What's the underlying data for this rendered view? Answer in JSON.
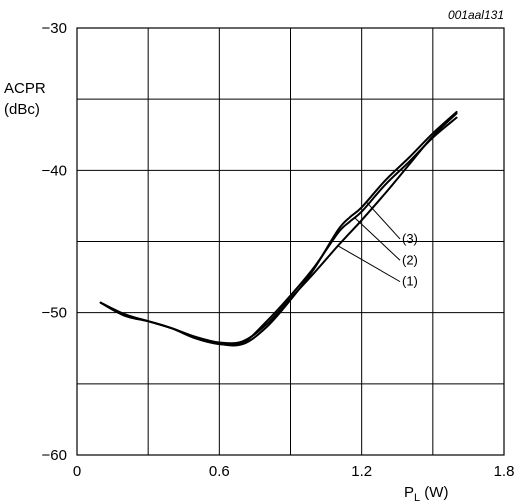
{
  "chart_data": {
    "type": "line",
    "code": "001aal131",
    "xlabel": "P",
    "xlabel_sub": "L",
    "xlabel_unit": " (W)",
    "ylabel_line1": "ACPR",
    "ylabel_line2": "(dBc)",
    "xlim": [
      0,
      1.8
    ],
    "ylim": [
      -60,
      -30
    ],
    "xticks": [
      0,
      0.6,
      1.2,
      1.8
    ],
    "xtick_labels": [
      "0",
      "0.6",
      "1.2",
      "1.8"
    ],
    "yticks": [
      -60,
      -50,
      -40,
      -30
    ],
    "ytick_labels": [
      "−60",
      "−50",
      "−40",
      "−30"
    ],
    "x_grid_step": 0.3,
    "y_grid_step": 5,
    "grid": true,
    "series": [
      {
        "name": "(1)",
        "x": [
          0.1,
          0.2,
          0.3,
          0.4,
          0.5,
          0.6,
          0.7,
          0.8,
          0.9,
          1.0,
          1.1,
          1.15,
          1.2,
          1.3,
          1.4,
          1.5,
          1.6
        ],
        "y": [
          -49.3,
          -50.1,
          -50.6,
          -51.1,
          -51.7,
          -52.1,
          -52.0,
          -50.8,
          -49.0,
          -47.2,
          -45.3,
          -44.4,
          -43.5,
          -41.6,
          -39.6,
          -37.6,
          -36.0
        ]
      },
      {
        "name": "(2)",
        "x": [
          0.1,
          0.2,
          0.3,
          0.4,
          0.5,
          0.6,
          0.7,
          0.8,
          0.9,
          1.0,
          1.1,
          1.15,
          1.2,
          1.3,
          1.4,
          1.5,
          1.6
        ],
        "y": [
          -49.3,
          -50.2,
          -50.6,
          -51.1,
          -51.8,
          -52.2,
          -52.1,
          -50.6,
          -48.8,
          -46.8,
          -44.4,
          -43.6,
          -42.9,
          -41.0,
          -39.4,
          -37.7,
          -36.3
        ]
      },
      {
        "name": "(3)",
        "x": [
          0.1,
          0.2,
          0.3,
          0.4,
          0.5,
          0.6,
          0.7,
          0.8,
          0.9,
          1.0,
          1.1,
          1.15,
          1.2,
          1.3,
          1.4,
          1.5,
          1.6
        ],
        "y": [
          -49.3,
          -50.2,
          -50.6,
          -51.1,
          -51.8,
          -52.2,
          -52.2,
          -51.0,
          -49.1,
          -46.9,
          -44.2,
          -43.3,
          -42.6,
          -40.7,
          -39.1,
          -37.4,
          -35.9
        ]
      }
    ],
    "annotations": [
      {
        "text": "(3)",
        "series_index": 2,
        "at_x": 1.22,
        "label_x": 1.37,
        "label_y": -45.1
      },
      {
        "text": "(2)",
        "series_index": 1,
        "at_x": 1.17,
        "label_x": 1.37,
        "label_y": -46.6
      },
      {
        "text": "(1)",
        "series_index": 0,
        "at_x": 1.1,
        "label_x": 1.37,
        "label_y": -48.1
      }
    ]
  }
}
